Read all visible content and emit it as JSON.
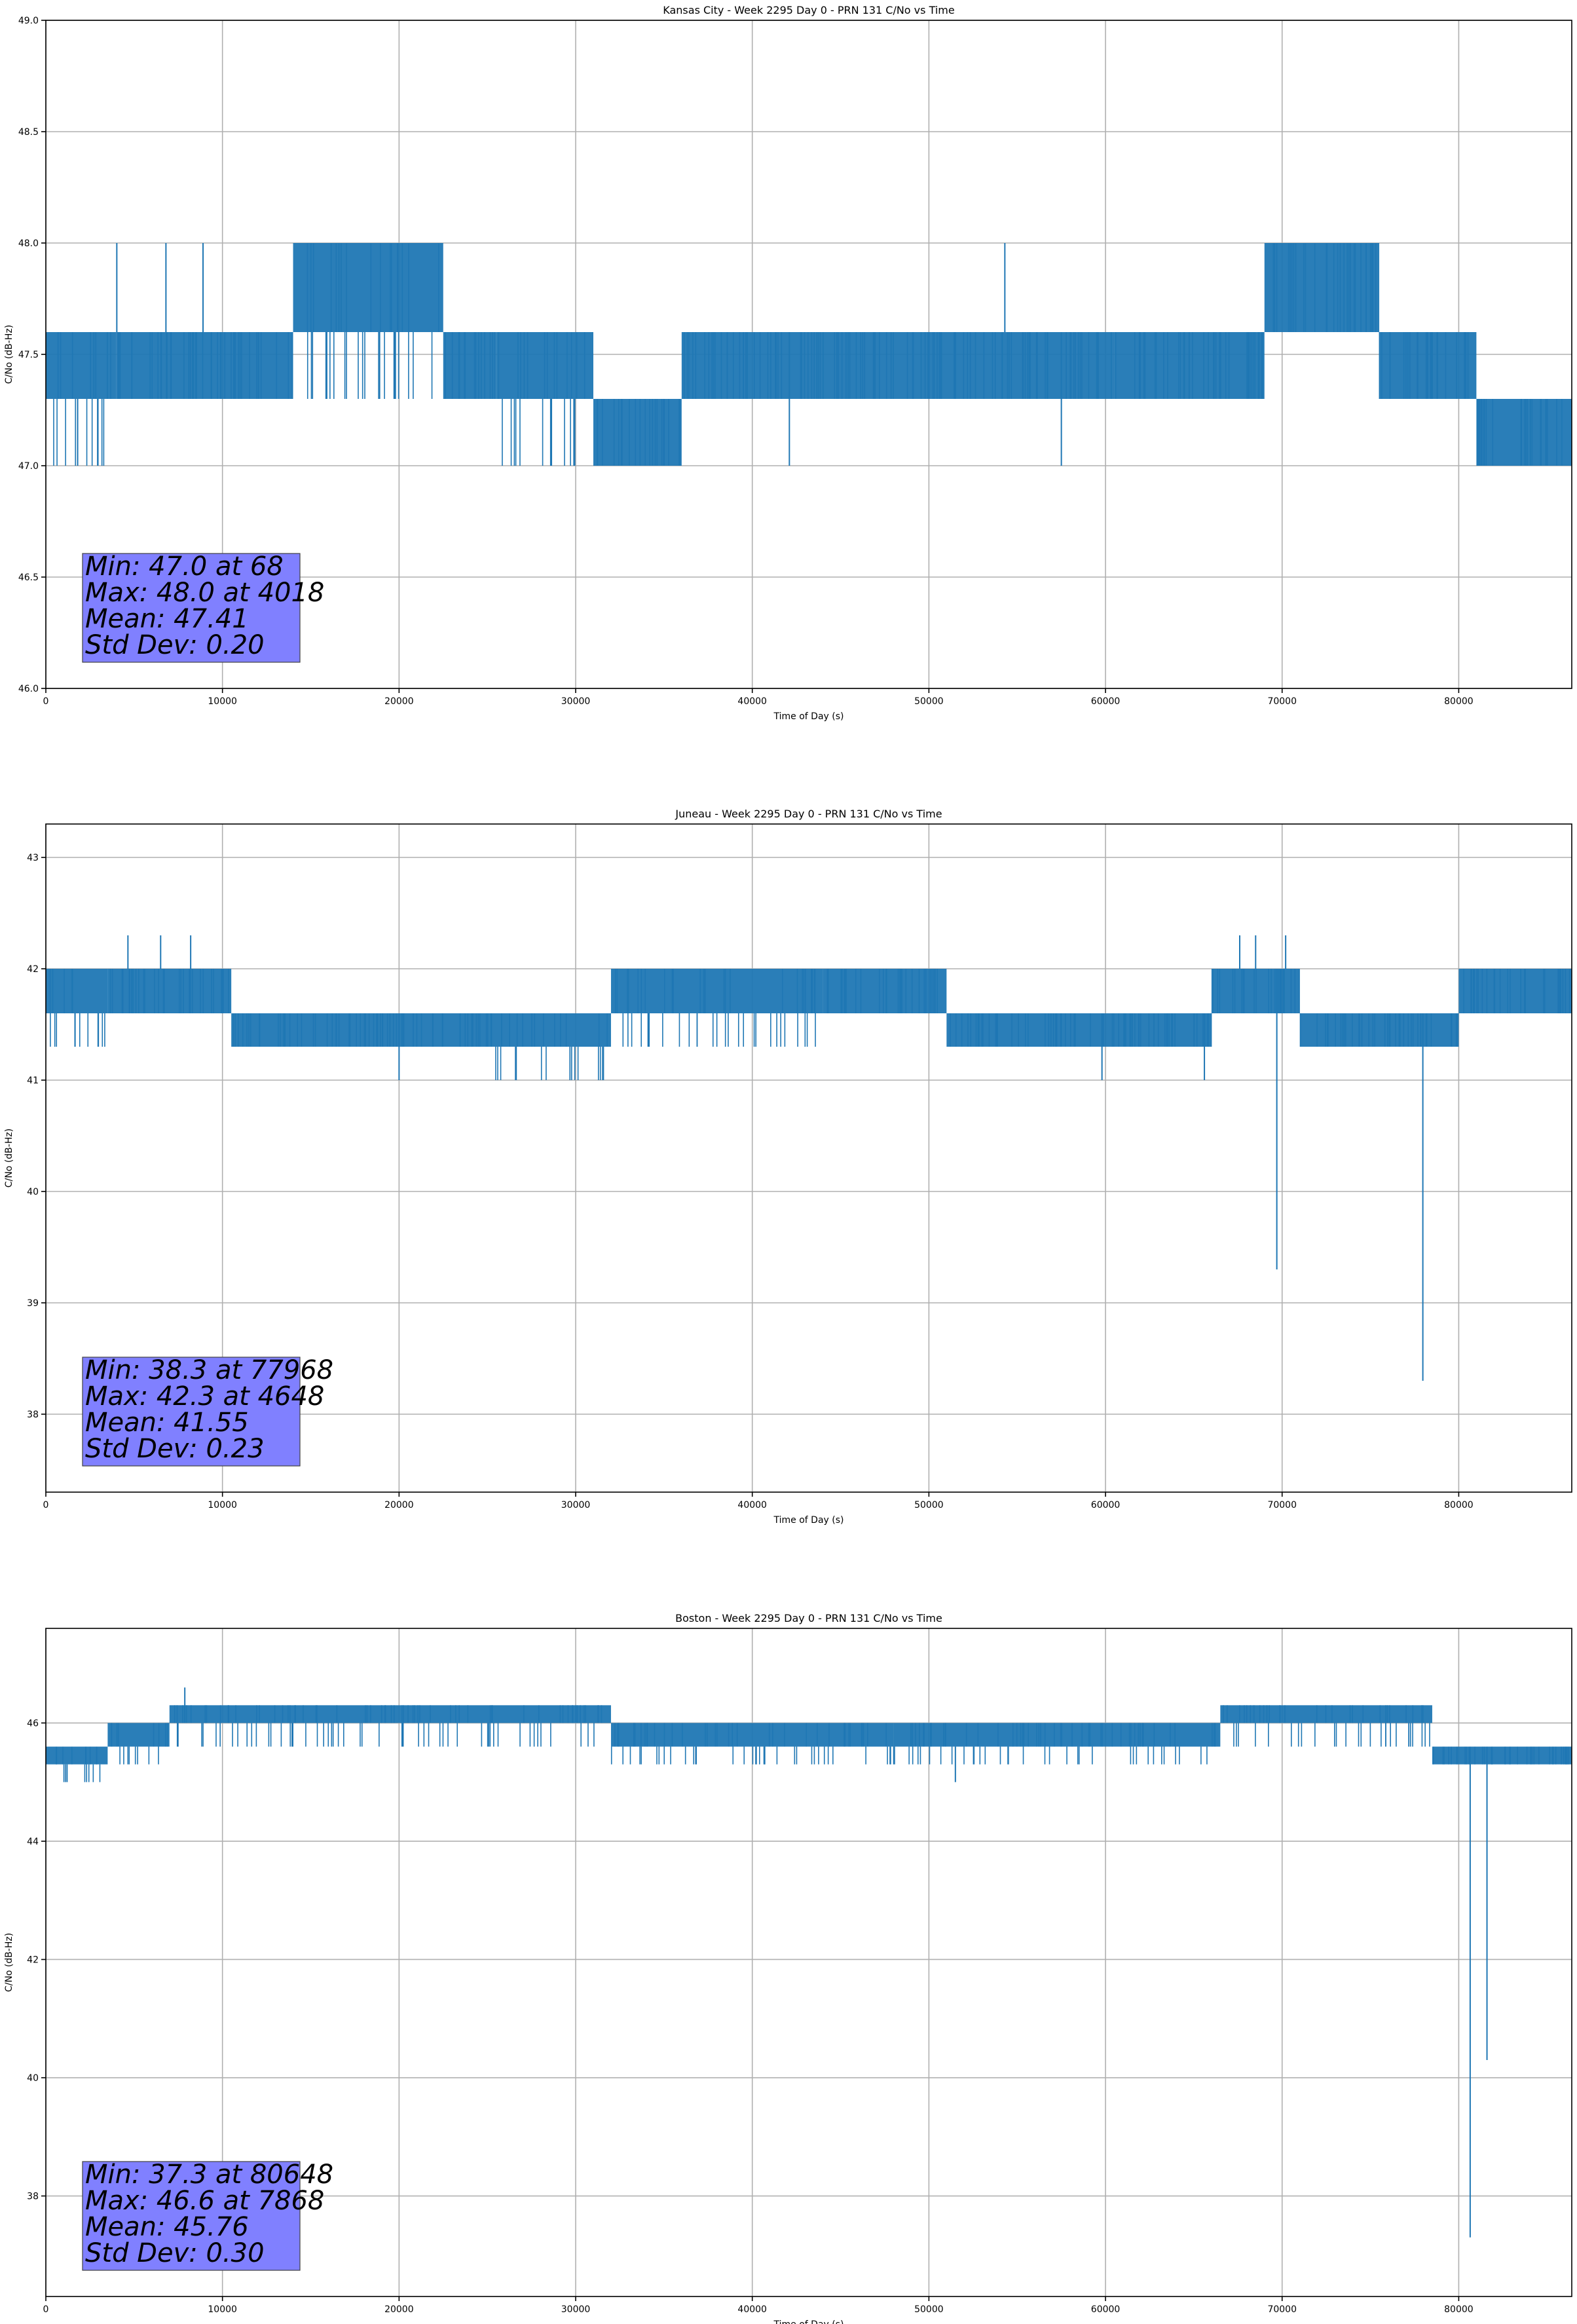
{
  "chart_data": [
    {
      "type": "line",
      "title": "Kansas City - Week 2295 Day 0 - PRN 131 C/No vs Time",
      "xlabel": "Time of Day (s)",
      "ylabel": "C/No (dB-Hz)",
      "xlim": [
        0,
        86400
      ],
      "ylim": [
        46.0,
        49.0
      ],
      "xticks": [
        0,
        10000,
        20000,
        30000,
        40000,
        50000,
        60000,
        70000,
        80000
      ],
      "yticks": [
        46.0,
        46.5,
        47.0,
        47.5,
        48.0,
        48.5,
        49.0
      ],
      "ytick_labels": [
        "46.0",
        "46.5",
        "47.0",
        "47.5",
        "48.0",
        "48.5",
        "49.0"
      ],
      "grid": true,
      "series_color": "#1f77b4",
      "stats_box_color": "#8080ff",
      "stats": [
        "Min: 47.0 at 68",
        "Max: 48.0 at 4018",
        "Mean: 47.41",
        "Std Dev: 0.20"
      ],
      "segments": [
        {
          "x0": 0,
          "x1": 4000,
          "levels": [
            47.0,
            47.3,
            47.6
          ]
        },
        {
          "x0": 4000,
          "x1": 14000,
          "levels": [
            47.3,
            47.6
          ]
        },
        {
          "x0": 14000,
          "x1": 22500,
          "levels": [
            47.3,
            47.6,
            48.0
          ]
        },
        {
          "x0": 22500,
          "x1": 25500,
          "levels": [
            47.3,
            47.6
          ]
        },
        {
          "x0": 25500,
          "x1": 31000,
          "levels": [
            47.0,
            47.3,
            47.6
          ]
        },
        {
          "x0": 31000,
          "x1": 36000,
          "levels": [
            47.0,
            47.3
          ]
        },
        {
          "x0": 36000,
          "x1": 60500,
          "levels": [
            47.3,
            47.6
          ]
        },
        {
          "x0": 60500,
          "x1": 69000,
          "levels": [
            47.3,
            47.6
          ]
        },
        {
          "x0": 69000,
          "x1": 75500,
          "levels": [
            47.6,
            48.0
          ]
        },
        {
          "x0": 75500,
          "x1": 81000,
          "levels": [
            47.3,
            47.6
          ]
        },
        {
          "x0": 81000,
          "x1": 86400,
          "levels": [
            47.0,
            47.3
          ]
        }
      ],
      "spikes": [
        {
          "x": 4018,
          "y": 48.0
        },
        {
          "x": 6800,
          "y": 48.0
        },
        {
          "x": 8900,
          "y": 48.0
        },
        {
          "x": 54300,
          "y": 48.0
        },
        {
          "x": 42100,
          "y": 47.0
        },
        {
          "x": 57500,
          "y": 47.0
        },
        {
          "x": 1800,
          "y": 47.0
        }
      ]
    },
    {
      "type": "line",
      "title": "Juneau - Week 2295 Day 0 - PRN 131 C/No vs Time",
      "xlabel": "Time of Day (s)",
      "ylabel": "C/No (dB-Hz)",
      "xlim": [
        0,
        86400
      ],
      "ylim": [
        37.3,
        43.3
      ],
      "xticks": [
        0,
        10000,
        20000,
        30000,
        40000,
        50000,
        60000,
        70000,
        80000
      ],
      "yticks": [
        38,
        39,
        40,
        41,
        42,
        43
      ],
      "ytick_labels": [
        "38",
        "39",
        "40",
        "41",
        "42",
        "43"
      ],
      "grid": true,
      "series_color": "#1f77b4",
      "stats_box_color": "#8080ff",
      "stats": [
        "Min: 38.3 at 77968",
        "Max: 42.3 at 4648",
        "Mean: 41.55",
        "Std Dev: 0.23"
      ],
      "segments": [
        {
          "x0": 0,
          "x1": 3500,
          "levels": [
            41.3,
            41.6,
            42.0
          ]
        },
        {
          "x0": 3500,
          "x1": 10500,
          "levels": [
            41.6,
            42.0
          ]
        },
        {
          "x0": 10500,
          "x1": 25000,
          "levels": [
            41.3,
            41.6
          ]
        },
        {
          "x0": 25000,
          "x1": 32000,
          "levels": [
            41.0,
            41.3,
            41.6
          ]
        },
        {
          "x0": 32000,
          "x1": 44000,
          "levels": [
            41.3,
            41.6,
            42.0
          ]
        },
        {
          "x0": 44000,
          "x1": 51000,
          "levels": [
            41.6,
            42.0
          ]
        },
        {
          "x0": 51000,
          "x1": 66000,
          "levels": [
            41.3,
            41.6
          ]
        },
        {
          "x0": 66000,
          "x1": 71000,
          "levels": [
            41.6,
            42.0
          ]
        },
        {
          "x0": 71000,
          "x1": 80000,
          "levels": [
            41.3,
            41.6
          ]
        },
        {
          "x0": 80000,
          "x1": 86400,
          "levels": [
            41.6,
            42.0
          ]
        }
      ],
      "spikes": [
        {
          "x": 4648,
          "y": 42.3
        },
        {
          "x": 6500,
          "y": 42.3
        },
        {
          "x": 8200,
          "y": 42.3
        },
        {
          "x": 67600,
          "y": 42.3
        },
        {
          "x": 68500,
          "y": 42.3
        },
        {
          "x": 70200,
          "y": 42.3
        },
        {
          "x": 69700,
          "y": 39.3
        },
        {
          "x": 77968,
          "y": 38.3
        },
        {
          "x": 20000,
          "y": 41.0
        },
        {
          "x": 59800,
          "y": 41.0
        },
        {
          "x": 65600,
          "y": 41.0
        }
      ]
    },
    {
      "type": "line",
      "title": "Boston - Week 2295 Day 0 - PRN 131 C/No vs Time",
      "xlabel": "Time of Day (s)",
      "ylabel": "C/No (dB-Hz)",
      "xlim": [
        0,
        86400
      ],
      "ylim": [
        36.3,
        47.6
      ],
      "xticks": [
        0,
        10000,
        20000,
        30000,
        40000,
        50000,
        60000,
        70000,
        80000
      ],
      "yticks": [
        38,
        40,
        42,
        44,
        46
      ],
      "ytick_labels": [
        "38",
        "40",
        "42",
        "44",
        "46"
      ],
      "grid": true,
      "series_color": "#1f77b4",
      "stats_box_color": "#8080ff",
      "stats": [
        "Min: 37.3 at 80648",
        "Max: 46.6 at 7868",
        "Mean: 45.76",
        "Std Dev: 0.30"
      ],
      "segments": [
        {
          "x0": 0,
          "x1": 3500,
          "levels": [
            45.0,
            45.3,
            45.6
          ]
        },
        {
          "x0": 3500,
          "x1": 7000,
          "levels": [
            45.3,
            45.6,
            46.0
          ]
        },
        {
          "x0": 7000,
          "x1": 32000,
          "levels": [
            45.6,
            46.0,
            46.3
          ]
        },
        {
          "x0": 32000,
          "x1": 48000,
          "levels": [
            45.3,
            45.6,
            46.0
          ]
        },
        {
          "x0": 48000,
          "x1": 66500,
          "levels": [
            45.3,
            45.6,
            46.0
          ]
        },
        {
          "x0": 66500,
          "x1": 78500,
          "levels": [
            45.6,
            46.0,
            46.3
          ]
        },
        {
          "x0": 78500,
          "x1": 86400,
          "levels": [
            45.3,
            45.6
          ]
        }
      ],
      "spikes": [
        {
          "x": 7868,
          "y": 46.6
        },
        {
          "x": 80648,
          "y": 37.3
        },
        {
          "x": 81600,
          "y": 40.3
        },
        {
          "x": 51500,
          "y": 45.0
        },
        {
          "x": 1200,
          "y": 45.0
        },
        {
          "x": 79900,
          "y": 45.3
        }
      ]
    }
  ]
}
